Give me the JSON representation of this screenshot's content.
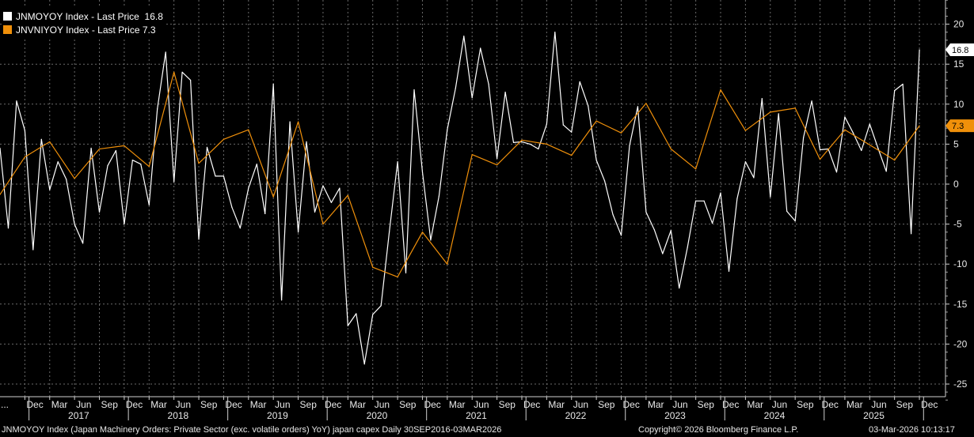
{
  "legend": [
    {
      "label": "JNMOYOY Index - Last Price",
      "value": "16.8",
      "color": "#ffffff"
    },
    {
      "label": "JNVNIYOY Index - Last Price",
      "value": "7.3",
      "color": "#f0900a"
    }
  ],
  "footer": {
    "description": "JNMOYOY Index (Japan Machinery Orders: Private Sector (exc. volatile orders) YoY) japan capex Daily 30SEP2016-03MAR2026",
    "copyright": "Copyright© 2026 Bloomberg Finance L.P.",
    "timestamp": "03-Mar-2026 10:13:17"
  },
  "chart_data": {
    "type": "line",
    "ylim": [
      -27,
      23
    ],
    "y_ticks": [
      20,
      15,
      10,
      5,
      0,
      -5,
      -10,
      -15,
      -20,
      -25
    ],
    "x_tick_labels": [
      "...",
      "Dec",
      "Mar",
      "Jun",
      "Sep",
      "Dec",
      "Mar",
      "Jun",
      "Sep",
      "Dec",
      "Mar",
      "Jun",
      "Sep",
      "Dec",
      "Mar",
      "Jun",
      "Sep",
      "Dec",
      "Mar",
      "Jun",
      "Sep",
      "Dec",
      "Mar",
      "Jun",
      "Sep",
      "Dec",
      "Mar",
      "Jun",
      "Sep",
      "Dec",
      "Mar",
      "Jun",
      "Sep",
      "Dec",
      "Mar",
      "Jun",
      "Sep",
      "Dec"
    ],
    "year_labels": [
      "2017",
      "2018",
      "2019",
      "2020",
      "2021",
      "2022",
      "2023",
      "2024",
      "2025"
    ],
    "grid": true,
    "legend_position": "top-left",
    "series": [
      {
        "name": "JNMOYOY Index - Last Price",
        "color": "#ffffff",
        "last_value": "16.8",
        "x": [
          "2016-09",
          "2016-10",
          "2016-11",
          "2016-12",
          "2017-01",
          "2017-02",
          "2017-03",
          "2017-04",
          "2017-05",
          "2017-06",
          "2017-07",
          "2017-08",
          "2017-09",
          "2017-10",
          "2017-11",
          "2017-12",
          "2018-01",
          "2018-02",
          "2018-03",
          "2018-04",
          "2018-05",
          "2018-06",
          "2018-07",
          "2018-08",
          "2018-09",
          "2018-10",
          "2018-11",
          "2018-12",
          "2019-01",
          "2019-02",
          "2019-03",
          "2019-04",
          "2019-05",
          "2019-06",
          "2019-07",
          "2019-08",
          "2019-09",
          "2019-10",
          "2019-11",
          "2019-12",
          "2020-01",
          "2020-02",
          "2020-03",
          "2020-04",
          "2020-05",
          "2020-06",
          "2020-07",
          "2020-08",
          "2020-09",
          "2020-10",
          "2020-11",
          "2020-12",
          "2021-01",
          "2021-02",
          "2021-03",
          "2021-04",
          "2021-05",
          "2021-06",
          "2021-07",
          "2021-08",
          "2021-09",
          "2021-10",
          "2021-11",
          "2021-12",
          "2022-01",
          "2022-02",
          "2022-03",
          "2022-04",
          "2022-05",
          "2022-06",
          "2022-07",
          "2022-08",
          "2022-09",
          "2022-10",
          "2022-11",
          "2022-12",
          "2023-01",
          "2023-02",
          "2023-03",
          "2023-04",
          "2023-05",
          "2023-06",
          "2023-07",
          "2023-08",
          "2023-09",
          "2023-10",
          "2023-11",
          "2023-12",
          "2024-01",
          "2024-02",
          "2024-03",
          "2024-04",
          "2024-05",
          "2024-06",
          "2024-07",
          "2024-08",
          "2024-09",
          "2024-10",
          "2024-11",
          "2024-12",
          "2025-01",
          "2025-02",
          "2025-03",
          "2025-04",
          "2025-05",
          "2025-06",
          "2025-07",
          "2025-08",
          "2025-09",
          "2025-10",
          "2025-11",
          "2025-12"
        ],
        "values": [
          4.5,
          -5.5,
          10.4,
          6.7,
          -8.2,
          5.6,
          -0.7,
          2.8,
          0.6,
          -5.0,
          -7.4,
          4.5,
          -3.5,
          2.3,
          4.2,
          -5.0,
          3.0,
          2.5,
          -2.6,
          9.4,
          16.5,
          0.3,
          14.0,
          13.0,
          -6.9,
          4.6,
          1.0,
          1.0,
          -2.9,
          -5.5,
          -0.5,
          2.5,
          -3.7,
          12.5,
          -14.5,
          7.8,
          -6.0,
          5.3,
          -3.5,
          -0.2,
          -2.3,
          -0.5,
          -17.7,
          -16.2,
          -22.5,
          -16.3,
          -15.2,
          -6.0,
          2.8,
          -11.1,
          11.8,
          1.5,
          -7.0,
          -1.5,
          6.8,
          12.0,
          18.5,
          10.8,
          17.0,
          12.5,
          3.2,
          11.5,
          5.2,
          5.3,
          5.0,
          4.4,
          7.5,
          19.0,
          7.4,
          6.5,
          12.8,
          9.8,
          3.0,
          0.4,
          -3.8,
          -6.4,
          4.8,
          9.7,
          -3.5,
          -5.7,
          -8.7,
          -5.8,
          -13.0,
          -7.9,
          -2.1,
          -2.1,
          -4.9,
          -1.1,
          -10.9,
          -1.8,
          2.8,
          0.8,
          10.7,
          -1.6,
          8.8,
          -3.4,
          -4.6,
          5.8,
          10.4,
          4.3,
          4.4,
          1.5,
          8.4,
          6.4,
          4.2,
          7.5,
          4.5,
          1.6,
          11.7,
          12.5,
          -6.2,
          16.8
        ]
      },
      {
        "name": "JNVNIYOY Index - Last Price",
        "color": "#f0900a",
        "last_value": "7.3",
        "x": [
          "2016-09",
          "2016-12",
          "2017-03",
          "2017-06",
          "2017-09",
          "2017-12",
          "2018-03",
          "2018-06",
          "2018-09",
          "2018-12",
          "2019-03",
          "2019-06",
          "2019-09",
          "2019-12",
          "2020-03",
          "2020-06",
          "2020-09",
          "2020-12",
          "2021-03",
          "2021-06",
          "2021-09",
          "2021-12",
          "2022-03",
          "2022-06",
          "2022-09",
          "2022-12",
          "2023-03",
          "2023-06",
          "2023-09",
          "2023-12",
          "2024-03",
          "2024-06",
          "2024-09",
          "2024-12",
          "2025-03",
          "2025-06",
          "2025-09",
          "2025-12"
        ],
        "values": [
          -1.3,
          3.4,
          5.3,
          0.7,
          4.4,
          4.8,
          2.2,
          14.0,
          2.6,
          5.6,
          6.8,
          -1.6,
          7.8,
          -5.0,
          -1.4,
          -10.4,
          -11.6,
          -6.0,
          -10.0,
          3.7,
          2.4,
          5.5,
          5.0,
          3.6,
          7.9,
          6.4,
          10.1,
          4.4,
          1.9,
          11.8,
          6.7,
          9.0,
          9.5,
          3.1,
          6.8,
          4.9,
          3.0,
          7.3
        ]
      }
    ]
  }
}
